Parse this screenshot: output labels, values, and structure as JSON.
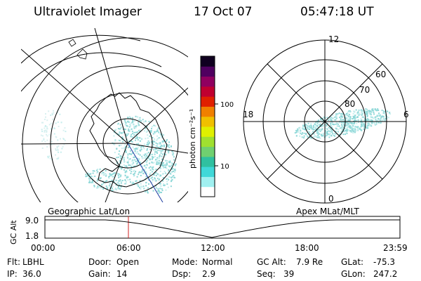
{
  "header": {
    "instrument": "Ultraviolet Imager",
    "date": "17 Oct 07",
    "time": "05:47:18 UT"
  },
  "colorbar": {
    "unit_label": "photon cm⁻²s⁻¹",
    "scale": "log",
    "ticks": [
      "100",
      "10"
    ],
    "colors": [
      "#ffffff",
      "#a0f0f0",
      "#40d8d8",
      "#30c0a0",
      "#70d070",
      "#a0e030",
      "#e0f000",
      "#f0c000",
      "#f08000",
      "#e02000",
      "#c00030",
      "#900060",
      "#500060",
      "#100020"
    ]
  },
  "geo_map": {
    "label": "Geographic Lat/Lon",
    "aurora_color": "#8fd8d8"
  },
  "polar_map": {
    "label": "Apex MLat/MLT",
    "lat_labels": [
      "80",
      "70",
      "60"
    ],
    "mlt_labels": [
      "12",
      "6",
      "0",
      "18"
    ]
  },
  "altitude_plot": {
    "ylabel": "GC Alt",
    "yticks": [
      "9.0",
      "1.8"
    ],
    "xticks": [
      "00:00",
      "06:00",
      "12:00",
      "18:00",
      "23:59"
    ],
    "marker_color": "#d02020",
    "current_time": "05:47"
  },
  "status": {
    "row1": [
      {
        "key": "Flt:",
        "val": "LBHL"
      },
      {
        "key": "Door:",
        "val": "Open"
      },
      {
        "key": "Mode:",
        "val": "Normal"
      },
      {
        "key": "GC Alt:",
        "val": "7.9 Re"
      },
      {
        "key": "GLat:",
        "val": "-75.3"
      }
    ],
    "row2": [
      {
        "key": "IP:",
        "val": "36.0"
      },
      {
        "key": "Gain:",
        "val": "14"
      },
      {
        "key": "Dsp:",
        "val": "2.9"
      },
      {
        "key": "Seq:",
        "val": "39"
      },
      {
        "key": "GLon:",
        "val": "247.2"
      }
    ]
  }
}
